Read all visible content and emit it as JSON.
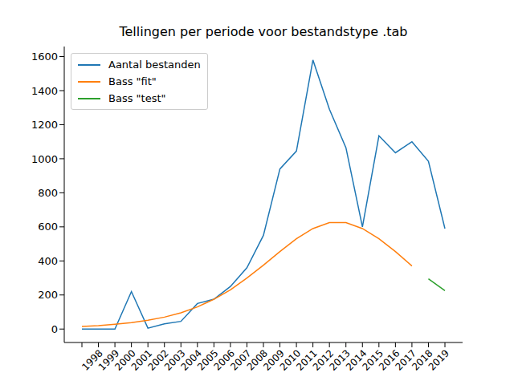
{
  "chart_data": {
    "type": "line",
    "title": "Tellingen per periode voor bestandstype .tab",
    "categories": [
      null,
      "1998",
      "1999",
      "2000",
      "2001",
      "2002",
      "2003",
      "2004",
      "2005",
      "2006",
      "2007",
      "2008",
      "2009",
      "2010",
      "2011",
      "2012",
      "2013",
      "2014",
      "2015",
      "2016",
      "2017",
      "2018",
      "2019"
    ],
    "series": [
      {
        "name": "Aantal bestanden",
        "color": "#1f77b4",
        "values": [
          0,
          0,
          0,
          220,
          5,
          30,
          45,
          150,
          175,
          250,
          360,
          550,
          940,
          1045,
          1580,
          1290,
          1065,
          600,
          1135,
          1035,
          1100,
          985,
          590
        ]
      },
      {
        "name": "Bass \"fit\"",
        "color": "#ff7f0e",
        "values": [
          15,
          20,
          28,
          38,
          52,
          70,
          95,
          130,
          175,
          230,
          300,
          375,
          455,
          530,
          590,
          625,
          625,
          590,
          530,
          455,
          370,
          null,
          null
        ]
      },
      {
        "name": "Bass \"test\"",
        "color": "#2ca02c",
        "values": [
          null,
          null,
          null,
          null,
          null,
          null,
          null,
          null,
          null,
          null,
          null,
          null,
          null,
          null,
          null,
          null,
          null,
          null,
          null,
          null,
          null,
          295,
          225
        ]
      }
    ],
    "ylim": [
      -79,
      1659
    ],
    "yticks": [
      0,
      200,
      400,
      600,
      800,
      1000,
      1200,
      1400,
      1600
    ],
    "legend": "upper left",
    "grid": false
  }
}
